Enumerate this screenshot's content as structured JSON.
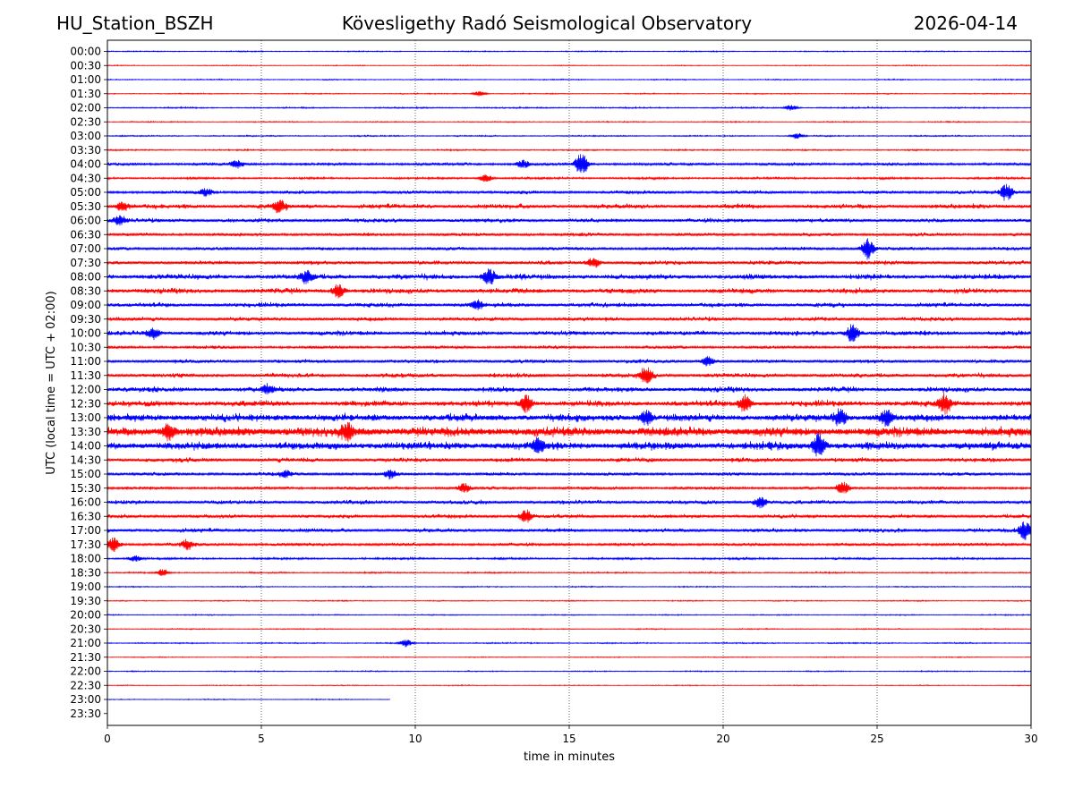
{
  "header": {
    "station": "HU_Station_BSZH",
    "observatory": "Kövesligethy Radó Seismological Observatory",
    "date": "2026-04-14"
  },
  "chart_data": {
    "type": "line",
    "title": "Kövesligethy Radó Seismological Observatory",
    "xlabel": "time in minutes",
    "ylabel": "UTC (local time = UTC + 02:00)",
    "xlim": [
      0,
      30
    ],
    "x_ticks": [
      0,
      5,
      10,
      15,
      20,
      25,
      30
    ],
    "vertical_gridlines_at": [
      5,
      10,
      15,
      20,
      25
    ],
    "grid": "dotted vertical",
    "row_labels": [
      "00:00",
      "00:30",
      "01:00",
      "01:30",
      "02:00",
      "02:30",
      "03:00",
      "03:30",
      "04:00",
      "04:30",
      "05:00",
      "05:30",
      "06:00",
      "06:30",
      "07:00",
      "07:30",
      "08:00",
      "08:30",
      "09:00",
      "09:30",
      "10:00",
      "10:30",
      "11:00",
      "11:30",
      "12:00",
      "12:30",
      "13:00",
      "13:30",
      "14:00",
      "14:30",
      "15:00",
      "15:30",
      "16:00",
      "16:30",
      "17:00",
      "17:30",
      "18:00",
      "18:30",
      "19:00",
      "19:30",
      "20:00",
      "20:30",
      "21:00",
      "21:30",
      "22:00",
      "22:30",
      "23:00",
      "23:30"
    ],
    "row_colors": [
      "#0000ff",
      "#ff0000"
    ],
    "row_end_minutes": [
      30,
      30,
      30,
      30,
      30,
      30,
      30,
      30,
      30,
      30,
      30,
      30,
      30,
      30,
      30,
      30,
      30,
      30,
      30,
      30,
      30,
      30,
      30,
      30,
      30,
      30,
      30,
      30,
      30,
      30,
      30,
      30,
      30,
      30,
      30,
      30,
      30,
      30,
      30,
      30,
      30,
      30,
      30,
      30,
      30,
      30,
      9.2,
      0
    ],
    "row_noise_level": [
      0.6,
      0.5,
      0.6,
      0.6,
      0.8,
      0.6,
      0.7,
      0.8,
      1.6,
      1.2,
      1.8,
      2.6,
      2.2,
      1.8,
      1.8,
      2.2,
      3.0,
      2.8,
      2.4,
      2.2,
      2.6,
      1.6,
      2.0,
      2.4,
      2.8,
      3.2,
      4.0,
      5.0,
      4.2,
      2.4,
      1.8,
      1.6,
      2.2,
      2.0,
      2.2,
      1.8,
      1.2,
      0.8,
      0.6,
      0.6,
      0.6,
      0.6,
      0.7,
      0.5,
      0.6,
      0.5,
      0.5,
      0
    ],
    "events": [
      {
        "row": 3,
        "minute": 12.1,
        "amp": 3
      },
      {
        "row": 4,
        "minute": 22.2,
        "amp": 3
      },
      {
        "row": 6,
        "minute": 22.4,
        "amp": 3
      },
      {
        "row": 8,
        "minute": 13.5,
        "amp": 4
      },
      {
        "row": 8,
        "minute": 15.4,
        "amp": 13
      },
      {
        "row": 8,
        "minute": 4.2,
        "amp": 4
      },
      {
        "row": 9,
        "minute": 12.3,
        "amp": 4
      },
      {
        "row": 10,
        "minute": 29.2,
        "amp": 9
      },
      {
        "row": 10,
        "minute": 3.2,
        "amp": 4
      },
      {
        "row": 11,
        "minute": 5.6,
        "amp": 6
      },
      {
        "row": 11,
        "minute": 0.5,
        "amp": 5
      },
      {
        "row": 12,
        "minute": 0.4,
        "amp": 5
      },
      {
        "row": 14,
        "minute": 24.7,
        "amp": 12
      },
      {
        "row": 15,
        "minute": 15.8,
        "amp": 5
      },
      {
        "row": 16,
        "minute": 12.4,
        "amp": 8
      },
      {
        "row": 16,
        "minute": 6.5,
        "amp": 7
      },
      {
        "row": 17,
        "minute": 7.5,
        "amp": 7
      },
      {
        "row": 18,
        "minute": 12.0,
        "amp": 5
      },
      {
        "row": 20,
        "minute": 1.5,
        "amp": 6
      },
      {
        "row": 20,
        "minute": 24.2,
        "amp": 10
      },
      {
        "row": 22,
        "minute": 19.5,
        "amp": 5
      },
      {
        "row": 23,
        "minute": 17.5,
        "amp": 9
      },
      {
        "row": 24,
        "minute": 5.2,
        "amp": 5
      },
      {
        "row": 25,
        "minute": 13.6,
        "amp": 9
      },
      {
        "row": 25,
        "minute": 20.7,
        "amp": 9
      },
      {
        "row": 25,
        "minute": 27.2,
        "amp": 10
      },
      {
        "row": 26,
        "minute": 17.5,
        "amp": 7
      },
      {
        "row": 26,
        "minute": 23.8,
        "amp": 9
      },
      {
        "row": 26,
        "minute": 25.3,
        "amp": 8
      },
      {
        "row": 27,
        "minute": 2.0,
        "amp": 9
      },
      {
        "row": 27,
        "minute": 7.8,
        "amp": 8
      },
      {
        "row": 28,
        "minute": 23.1,
        "amp": 13
      },
      {
        "row": 28,
        "minute": 14.0,
        "amp": 7
      },
      {
        "row": 30,
        "minute": 9.2,
        "amp": 5
      },
      {
        "row": 30,
        "minute": 5.8,
        "amp": 4
      },
      {
        "row": 31,
        "minute": 23.9,
        "amp": 7
      },
      {
        "row": 31,
        "minute": 11.6,
        "amp": 5
      },
      {
        "row": 32,
        "minute": 21.2,
        "amp": 6
      },
      {
        "row": 33,
        "minute": 13.6,
        "amp": 7
      },
      {
        "row": 34,
        "minute": 29.8,
        "amp": 10
      },
      {
        "row": 35,
        "minute": 0.2,
        "amp": 8
      },
      {
        "row": 35,
        "minute": 2.6,
        "amp": 5
      },
      {
        "row": 36,
        "minute": 0.9,
        "amp": 3
      },
      {
        "row": 37,
        "minute": 1.8,
        "amp": 4
      },
      {
        "row": 42,
        "minute": 9.7,
        "amp": 4
      }
    ]
  }
}
